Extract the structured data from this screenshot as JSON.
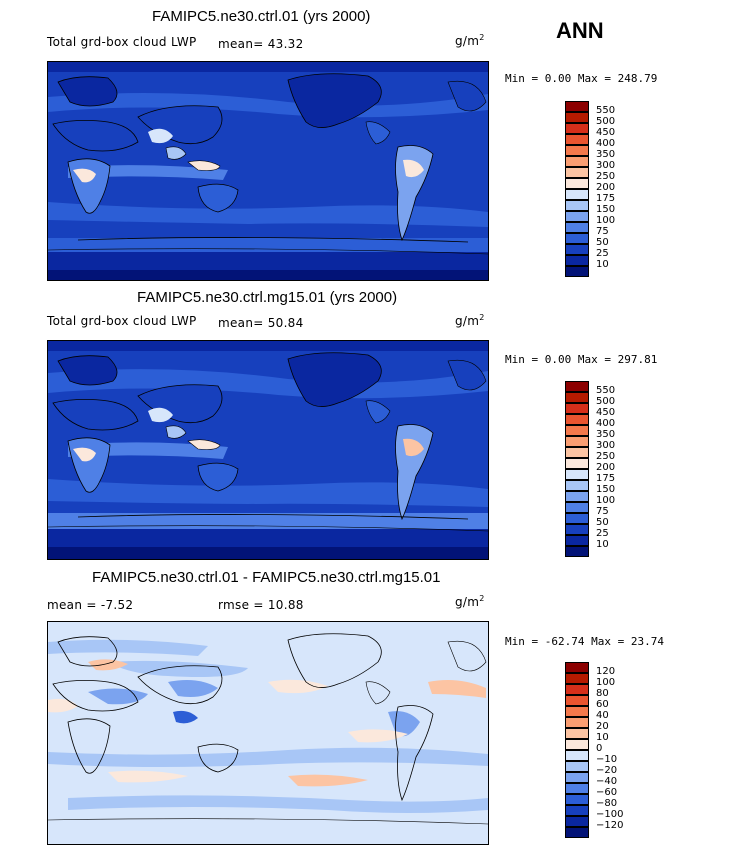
{
  "season": "ANN",
  "panels": [
    {
      "title": "FAMIPC5.ne30.ctrl.01 (yrs 2000)",
      "variable": "Total grd-box cloud LWP",
      "stat": "mean=  43.32",
      "units": "g/m",
      "units_exp": "2",
      "minmax": "Min =   0.00 Max = 248.79",
      "colorbar": {
        "levels": [
          "550",
          "500",
          "450",
          "400",
          "350",
          "300",
          "250",
          "200",
          "175",
          "150",
          "100",
          "75",
          "50",
          "25",
          "10"
        ],
        "colors": [
          "#8c0000",
          "#b51a00",
          "#d62f1a",
          "#ea5530",
          "#f4794c",
          "#fa9e72",
          "#fcc4a3",
          "#fbe8dc",
          "#d7e6fb",
          "#a8c6f6",
          "#7ba3ef",
          "#4f80e6",
          "#2c5ed6",
          "#1740bd",
          "#0a27a0",
          "#021377"
        ]
      }
    },
    {
      "title": "FAMIPC5.ne30.ctrl.mg15.01 (yrs 2000)",
      "variable": "Total grd-box cloud LWP",
      "stat": "mean=  50.84",
      "units": "g/m",
      "units_exp": "2",
      "minmax": "Min =   0.00 Max = 297.81",
      "colorbar": {
        "levels": [
          "550",
          "500",
          "450",
          "400",
          "350",
          "300",
          "250",
          "200",
          "175",
          "150",
          "100",
          "75",
          "50",
          "25",
          "10"
        ],
        "colors": [
          "#8c0000",
          "#b51a00",
          "#d62f1a",
          "#ea5530",
          "#f4794c",
          "#fa9e72",
          "#fcc4a3",
          "#fbe8dc",
          "#d7e6fb",
          "#a8c6f6",
          "#7ba3ef",
          "#4f80e6",
          "#2c5ed6",
          "#1740bd",
          "#0a27a0",
          "#021377"
        ]
      }
    },
    {
      "title": "FAMIPC5.ne30.ctrl.01 - FAMIPC5.ne30.ctrl.mg15.01",
      "stat_mean": "mean =  -7.52",
      "stat_rmse": "rmse =  10.88",
      "units": "g/m",
      "units_exp": "2",
      "minmax": "Min = -62.74 Max =  23.74",
      "colorbar": {
        "levels": [
          "120",
          "100",
          "80",
          "60",
          "40",
          "20",
          "10",
          "0",
          "−10",
          "−20",
          "−40",
          "−60",
          "−80",
          "−100",
          "−120"
        ],
        "colors": [
          "#8c0000",
          "#b51a00",
          "#d62f1a",
          "#ea5530",
          "#f4794c",
          "#fa9e72",
          "#fcc4a3",
          "#fbe8dc",
          "#d7e6fb",
          "#a8c6f6",
          "#7ba3ef",
          "#4f80e6",
          "#2c5ed6",
          "#1740bd",
          "#0a27a0",
          "#021377"
        ]
      }
    }
  ]
}
